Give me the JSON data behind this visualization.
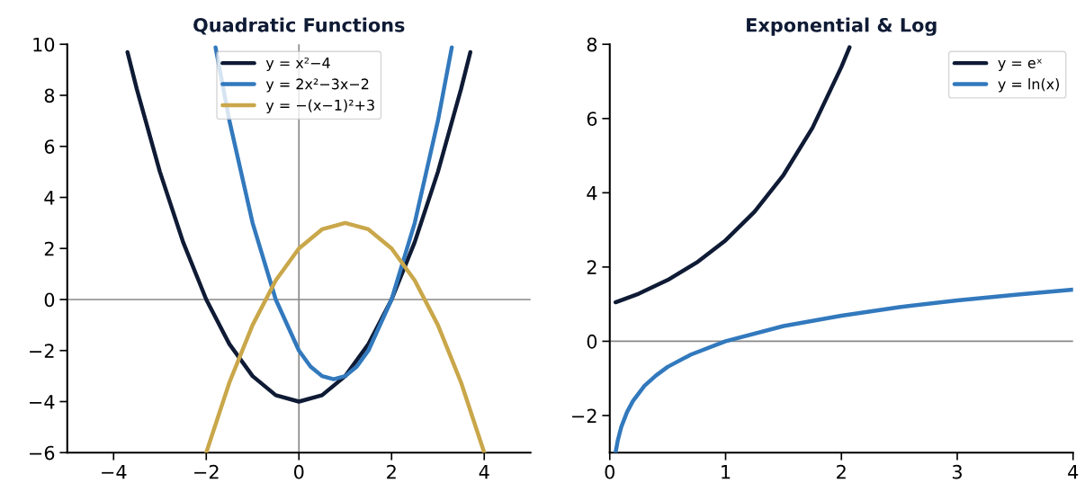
{
  "chart_data": [
    {
      "type": "line",
      "title": "Quadratic Functions",
      "xlim": [
        -5,
        5
      ],
      "ylim": [
        -6,
        10
      ],
      "xticks": [
        -4,
        -2,
        0,
        2,
        4
      ],
      "yticks": [
        -6,
        -4,
        -2,
        0,
        2,
        4,
        6,
        8,
        10
      ],
      "grid": false,
      "legend": "top center",
      "marker": "none",
      "line_style": "solid",
      "ref_lines": [
        {
          "axis": "x",
          "value": 0,
          "color": "#888888"
        },
        {
          "axis": "y",
          "value": 0,
          "color": "#888888"
        }
      ],
      "series": [
        {
          "name": "y = x²−4",
          "color": "#0f1b35",
          "x": [
            -3.7,
            -3.5,
            -3,
            -2.5,
            -2,
            -1.5,
            -1,
            -0.5,
            0,
            0.5,
            1,
            1.5,
            2,
            2.5,
            3,
            3.5,
            3.7
          ],
          "values": [
            9.69,
            8.25,
            5,
            2.25,
            0,
            -1.75,
            -3,
            -3.75,
            -4,
            -3.75,
            -3,
            -1.75,
            0,
            2.25,
            5,
            8.25,
            9.69
          ]
        },
        {
          "name": "y = 2x²−3x−2",
          "color": "#3279bd",
          "x": [
            -1.8,
            -1.5,
            -1,
            -0.5,
            0,
            0.25,
            0.5,
            0.75,
            1,
            1.25,
            1.5,
            2,
            2.5,
            3,
            3.3
          ],
          "values": [
            9.88,
            7,
            3,
            0,
            -2,
            -2.625,
            -3,
            -3.125,
            -3,
            -2.625,
            -2,
            0,
            3,
            7,
            9.88
          ]
        },
        {
          "name": "y = −(x−1)²+3",
          "color": "#c9a74a",
          "x": [
            -2,
            -1.5,
            -1,
            -0.5,
            0,
            0.5,
            1,
            1.5,
            2,
            2.5,
            3,
            3.5,
            4
          ],
          "values": [
            -6,
            -3.25,
            -1,
            0.75,
            2,
            2.75,
            3,
            2.75,
            2,
            0.75,
            -1,
            -3.25,
            -6
          ]
        }
      ]
    },
    {
      "type": "line",
      "title": "Exponential & Log",
      "xlim": [
        0,
        4
      ],
      "ylim": [
        -3,
        8
      ],
      "xticks": [
        0,
        1,
        2,
        3,
        4
      ],
      "yticks": [
        -2,
        0,
        2,
        4,
        6,
        8
      ],
      "grid": false,
      "legend": "top right",
      "marker": "none",
      "line_style": "solid",
      "ref_lines": [
        {
          "axis": "y",
          "value": 0,
          "color": "#888888"
        }
      ],
      "series": [
        {
          "name": "y = eˣ",
          "color": "#0f1b35",
          "x": [
            0.05,
            0.25,
            0.5,
            0.75,
            1,
            1.25,
            1.5,
            1.75,
            2,
            2.07
          ],
          "values": [
            1.05,
            1.28,
            1.65,
            2.12,
            2.72,
            3.49,
            4.48,
            5.75,
            7.39,
            7.92
          ]
        },
        {
          "name": "y = ln(x)",
          "color": "#3279bd",
          "x": [
            0.05,
            0.07,
            0.1,
            0.15,
            0.2,
            0.3,
            0.4,
            0.5,
            0.7,
            1,
            1.5,
            2,
            2.5,
            3,
            3.5,
            4
          ],
          "values": [
            -3.0,
            -2.66,
            -2.3,
            -1.9,
            -1.61,
            -1.2,
            -0.92,
            -0.69,
            -0.36,
            0,
            0.41,
            0.69,
            0.92,
            1.1,
            1.25,
            1.39
          ]
        }
      ]
    }
  ]
}
